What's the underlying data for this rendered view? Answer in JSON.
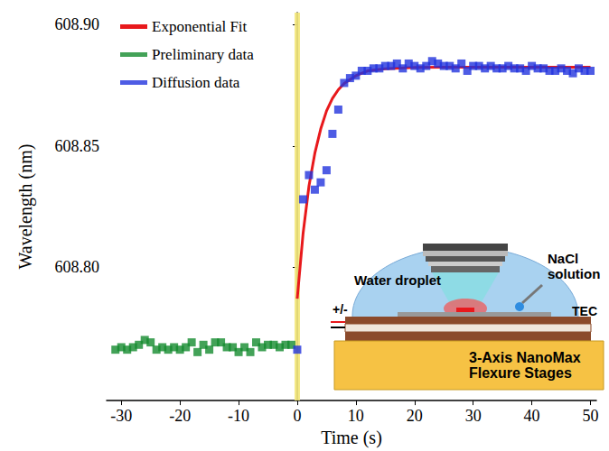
{
  "chart_data": {
    "type": "scatter",
    "xlabel": "Time (s)",
    "ylabel": "Wavelength (nm)",
    "xlim": [
      -32.5,
      51
    ],
    "xticks": [
      -30,
      -20,
      -10,
      0,
      10,
      20,
      30,
      40,
      50
    ],
    "ylim": [
      608.745,
      608.905
    ],
    "yticks": [
      {
        "value": 608.8,
        "label": "608.80"
      },
      608.85,
      {
        "value": 608.9,
        "label": "608.90"
      }
    ],
    "grid": false,
    "legend": "top-left",
    "highlight_x": 0,
    "annotations": [
      "Water droplet",
      "NaCl solution",
      "TEC",
      "+/-",
      "3-Axis NanoMax Flexure Stages"
    ],
    "series": [
      {
        "name": "Exponential Fit",
        "type": "line",
        "color": "#e8191c",
        "marker": "none",
        "line_style": "solid",
        "x": [
          0,
          1,
          2,
          3,
          4,
          5,
          6,
          7,
          8,
          10,
          12,
          15,
          20,
          25,
          30,
          40,
          50
        ],
        "values": [
          608.787,
          608.814,
          608.8335,
          608.847,
          608.857,
          608.8645,
          608.8696,
          608.8732,
          608.8758,
          608.879,
          608.881,
          608.8818,
          608.8824,
          608.8825,
          608.8825,
          608.8825,
          608.8825
        ]
      },
      {
        "name": "Preliminary data",
        "type": "scatter",
        "color": "#148b2e",
        "marker": "square",
        "x": [
          -31,
          -30,
          -29,
          -28,
          -27,
          -26,
          -25,
          -24,
          -23,
          -22,
          -21,
          -20,
          -19,
          -18,
          -17,
          -16,
          -15,
          -14,
          -13,
          -12,
          -11,
          -10,
          -9,
          -8,
          -7,
          -6,
          -5,
          -4,
          -3,
          -2,
          -1
        ],
        "values": [
          608.766,
          608.767,
          608.766,
          608.767,
          608.768,
          608.77,
          608.769,
          608.766,
          608.767,
          608.766,
          608.767,
          608.766,
          608.767,
          608.769,
          608.765,
          608.768,
          608.766,
          608.769,
          608.769,
          608.767,
          608.767,
          608.765,
          608.767,
          608.765,
          608.769,
          608.767,
          608.768,
          608.768,
          608.767,
          608.768,
          608.768
        ]
      },
      {
        "name": "Diffusion data",
        "type": "scatter",
        "color": "#2233dd",
        "marker": "square",
        "x": [
          0,
          1,
          2,
          3,
          4,
          5,
          6,
          7,
          8,
          9,
          10,
          11,
          12,
          13,
          14,
          15,
          16,
          17,
          18,
          19,
          20,
          21,
          22,
          23,
          24,
          25,
          26,
          27,
          28,
          29,
          30,
          31,
          32,
          33,
          34,
          35,
          36,
          37,
          38,
          39,
          40,
          41,
          42,
          43,
          44,
          45,
          46,
          47,
          48,
          49,
          50
        ],
        "values": [
          608.766,
          608.828,
          608.838,
          608.832,
          608.835,
          608.84,
          608.855,
          608.865,
          608.876,
          608.878,
          608.879,
          608.881,
          608.881,
          608.882,
          608.882,
          608.883,
          608.883,
          608.884,
          608.882,
          608.884,
          608.883,
          608.882,
          608.883,
          608.885,
          608.884,
          608.883,
          608.883,
          608.882,
          608.884,
          608.881,
          608.883,
          608.883,
          608.882,
          608.883,
          608.882,
          608.882,
          608.883,
          608.882,
          608.882,
          608.881,
          608.883,
          608.882,
          608.882,
          608.881,
          608.881,
          608.882,
          608.881,
          608.88,
          608.882,
          608.881,
          608.881
        ]
      }
    ]
  }
}
